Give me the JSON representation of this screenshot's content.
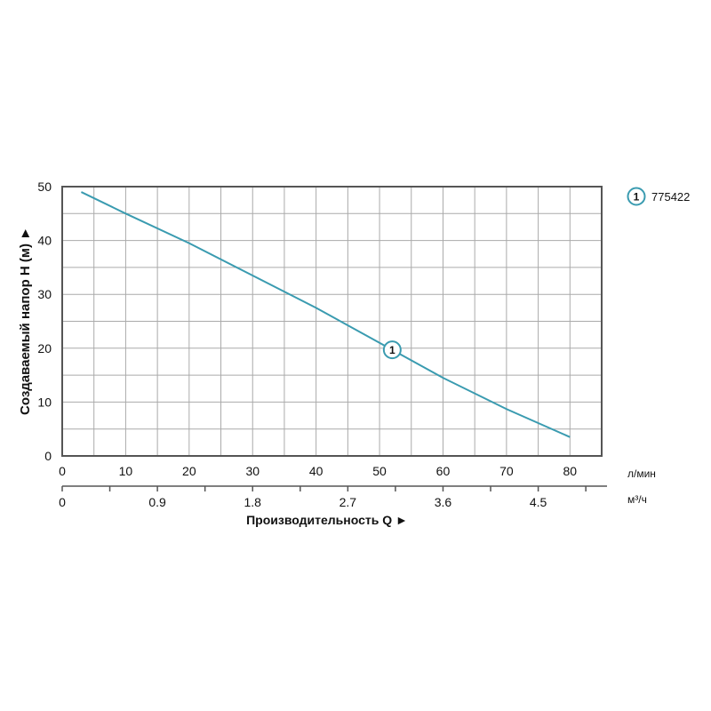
{
  "chart_data": {
    "type": "line",
    "ylabel": "Создаваемый напор H (м) ►",
    "xlabel": "Производительность Q ►",
    "x_unit": "л/мин",
    "x2_unit": "м³/ч",
    "xlim": [
      0,
      85
    ],
    "ylim": [
      0,
      50
    ],
    "x_ticks": [
      0,
      10,
      20,
      30,
      40,
      50,
      60,
      70,
      80
    ],
    "x2_ticks": [
      "0",
      "0.9",
      "1.8",
      "2.7",
      "3.6",
      "4.5"
    ],
    "y_ticks": [
      0,
      10,
      20,
      30,
      40,
      50
    ],
    "grid": true,
    "legend_position": "top-right",
    "colors": {
      "curve": "#3a9bb0"
    },
    "series": [
      {
        "name": "775422",
        "marker_label": "1",
        "x": [
          3,
          10,
          20,
          30,
          40,
          50,
          52,
          60,
          70,
          80
        ],
        "y": [
          49,
          45,
          39.5,
          33.5,
          27.5,
          21,
          19.7,
          14.5,
          8.7,
          3.5
        ]
      }
    ]
  }
}
